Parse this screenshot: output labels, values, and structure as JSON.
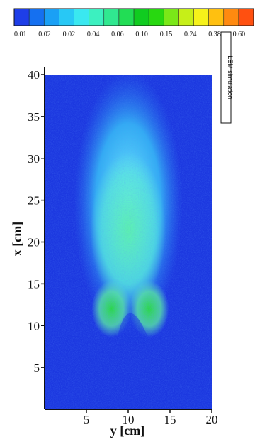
{
  "chart_data": {
    "type": "heatmap",
    "title": "",
    "xlabel": "y [cm]",
    "ylabel": "x [cm]",
    "xlim": [
      0,
      20
    ],
    "ylim": [
      0,
      40
    ],
    "x_ticks": [
      "5",
      "10",
      "15",
      "20"
    ],
    "y_ticks": [
      "5",
      "10",
      "15",
      "20",
      "25",
      "30",
      "35",
      "40"
    ],
    "domain_x": [
      0,
      20
    ],
    "domain_y": [
      0,
      40
    ],
    "annotation": "LEM simulation",
    "colorbar": {
      "labels": [
        "0.01",
        "0.02",
        "0.02",
        "0.04",
        "0.06",
        "0.10",
        "0.15",
        "0.24",
        "0.38",
        "0.60"
      ],
      "colors": [
        "#1e3ee8",
        "#1570f0",
        "#1aa0f5",
        "#28c8f5",
        "#3ae8f0",
        "#3cf0c0",
        "#30e890",
        "#22dd55",
        "#10cc20",
        "#28d810",
        "#7ae818",
        "#c6ef18",
        "#f6f21a",
        "#ffc010",
        "#ff8a10",
        "#ff5010"
      ]
    },
    "field": {
      "background": "#1c38e0",
      "plume_center_y": 10,
      "plume_x_range": [
        9,
        39
      ],
      "max_value": 0.06,
      "lobes_y": [
        8,
        12.5
      ],
      "lobe_tip_x": 9
    }
  }
}
